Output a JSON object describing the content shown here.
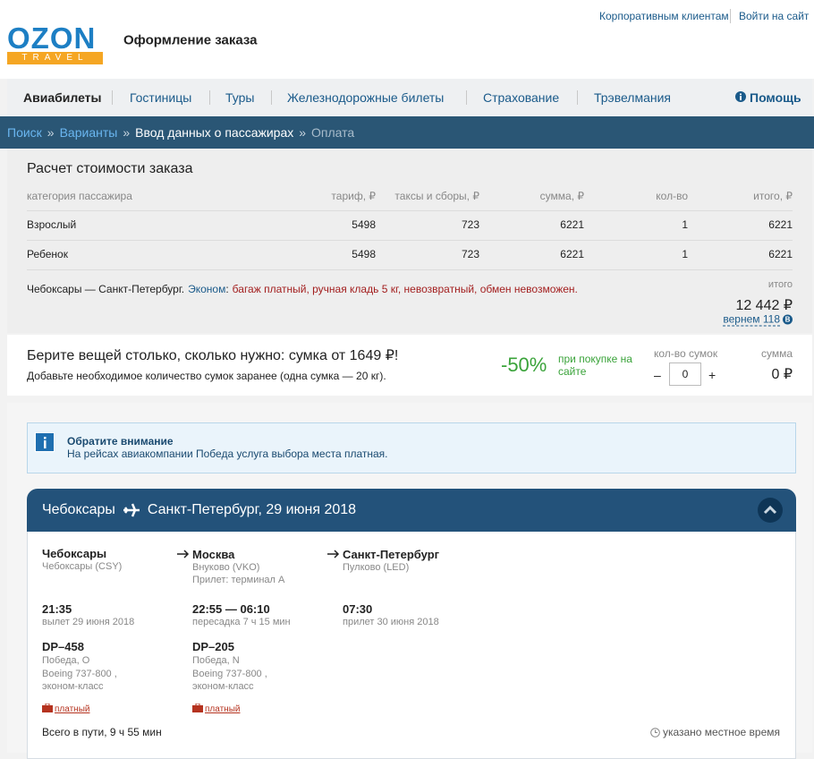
{
  "header": {
    "links": [
      "Корпоративным клиентам",
      "Войти на сайт"
    ],
    "logo": "OZON",
    "logo_sub": "TRAVEL",
    "title": "Оформление заказа"
  },
  "nav": [
    "Авиабилеты",
    "Гостиницы",
    "Туры",
    "Железнодорожные билеты",
    "Страхование",
    "Трэвелмания",
    "Помощь"
  ],
  "breadcrumb": {
    "items": [
      "Поиск",
      "Варианты",
      "Ввод данных о пассажирах",
      "Оплата"
    ],
    "separator": "»"
  },
  "cost": {
    "title": "Расчет стоимости заказа",
    "columns": [
      "категория пассажира",
      "тариф, ₽",
      "таксы и сборы, ₽",
      "сумма, ₽",
      "кол-во",
      "итого, ₽"
    ],
    "rows": [
      [
        "Взрослый",
        5498,
        723,
        6221,
        1,
        6221
      ],
      [
        "Ребенок",
        5498,
        723,
        6221,
        1,
        6221
      ]
    ],
    "route": "Чебоксары — Санкт-Петербург.",
    "fare": "Эконом",
    "fare_sep": ":",
    "conditions": "багаж платный, ручная кладь 5 кг, невозвратный, обмен невозможен.",
    "total_label": "итого",
    "total": "12 442 ₽",
    "cashback": "вернем 118",
    "cashback_icon": "B"
  },
  "baggage": {
    "title": "Берите вещей столько, сколько нужно: сумка от 1649 ₽!",
    "subtitle": "Добавьте необходимое количество сумок заранее (одна сумка — 20 кг).",
    "discount": "-50%",
    "discount_note": "при покупке на сайте",
    "qty_label": "кол-во сумок",
    "minus": "–",
    "qty": "0",
    "plus": "+",
    "sum_label": "сумма",
    "sum": "0 ₽"
  },
  "notice": {
    "title": "Обратите внимание",
    "text": "На рейсах авиакомпании Победа услуга выбора места платная."
  },
  "flight": {
    "from": "Чебоксары",
    "to": "Санкт-Петербург, 29 июня 2018",
    "points": [
      {
        "city": "Чебоксары",
        "airport": "Чебоксары (CSY)"
      },
      {
        "city": "Москва",
        "airport": "Внуково (VKO)",
        "extra": "Прилет: терминал A"
      },
      {
        "city": "Санкт-Петербург",
        "airport": "Пулково (LED)"
      }
    ],
    "times": [
      {
        "time": "21:35",
        "note": "вылет 29 июня 2018"
      },
      {
        "time": "22:55 — 06:10",
        "note": "пересадка 7 ч 15 мин"
      },
      {
        "time": "07:30",
        "note": "прилет 30 июня 2018"
      }
    ],
    "segments": [
      {
        "number": "DP–458",
        "carrier": "Победа, O",
        "aircraft": "Boeing 737-800 , эконом-класс",
        "baggage": "платный"
      },
      {
        "number": "DP–205",
        "carrier": "Победа, N",
        "aircraft": "Boeing 737-800 , эконом-класс",
        "baggage": "платный"
      }
    ],
    "total_time": "Всего в пути, 9 ч 55 мин",
    "local_time": "указано местное время"
  }
}
